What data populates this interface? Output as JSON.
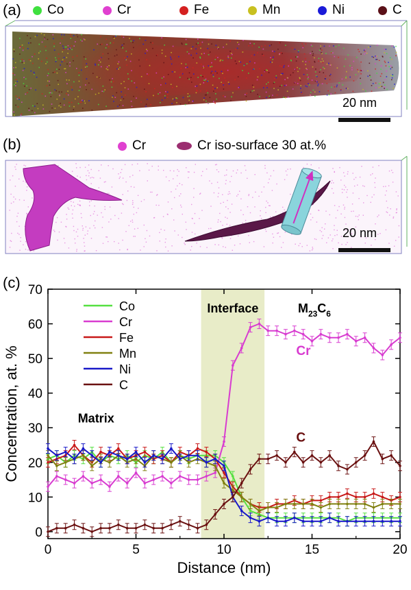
{
  "panel_a": {
    "label": "(a)",
    "legend": [
      {
        "name": "Co",
        "color": "#3fe03f"
      },
      {
        "name": "Cr",
        "color": "#e040d0"
      },
      {
        "name": "Fe",
        "color": "#d42020"
      },
      {
        "name": "Mn",
        "color": "#c8c020"
      },
      {
        "name": "Ni",
        "color": "#1a1ad8"
      },
      {
        "name": "C",
        "color": "#5a1018"
      }
    ],
    "scale_bar": "20 nm"
  },
  "panel_b": {
    "label": "(b)",
    "legend": [
      {
        "name": "Cr",
        "color": "#e040d0",
        "marker": "dot"
      },
      {
        "name": "Cr iso-surface 30 at.%",
        "color": "#9b2e70",
        "marker": "ellipse"
      }
    ],
    "scale_bar": "20 nm"
  },
  "panel_c_label": "(c)",
  "chart_data": {
    "type": "line",
    "xlabel": "Distance (nm)",
    "ylabel": "Concentration, at. %",
    "xlim": [
      0,
      20
    ],
    "ylim": [
      -2,
      70
    ],
    "xticks": [
      0,
      5,
      10,
      15,
      20
    ],
    "yticks": [
      0,
      10,
      20,
      30,
      40,
      50,
      60,
      70
    ],
    "legend_position": "top-left",
    "interface_band": {
      "start": 8.7,
      "end": 12.3,
      "color": "#e8ecc8"
    },
    "annotations": {
      "interface": "Interface",
      "matrix": "Matrix",
      "phase_main": "M",
      "phase_sub1": "23",
      "phase_mid": "C",
      "phase_sub2": "6",
      "cr_label": "Cr",
      "c_label": "C"
    },
    "x": [
      0,
      0.5,
      1,
      1.5,
      2,
      2.5,
      3,
      3.5,
      4,
      4.5,
      5,
      5.5,
      6,
      6.5,
      7,
      7.5,
      8,
      8.5,
      9,
      9.5,
      10,
      10.5,
      11,
      11.5,
      12,
      12.5,
      13,
      13.5,
      14,
      14.5,
      15,
      15.5,
      16,
      16.5,
      17,
      17.5,
      18,
      18.5,
      19,
      19.5,
      20
    ],
    "series": [
      {
        "name": "Co",
        "color": "#55e040",
        "values": [
          21,
          22,
          20,
          22,
          21,
          23,
          20,
          22,
          21,
          22,
          20,
          22,
          21,
          23,
          20,
          22,
          21,
          22,
          22,
          22,
          20,
          16,
          10,
          6,
          5,
          4,
          4,
          4,
          4,
          4,
          4,
          4,
          4,
          4,
          3,
          4,
          4,
          4,
          4,
          4,
          4
        ]
      },
      {
        "name": "Cr",
        "color": "#d83cd0",
        "values": [
          13,
          16,
          15,
          14,
          16,
          14,
          15,
          13,
          16,
          14,
          17,
          14,
          15,
          16,
          14,
          16,
          15,
          15,
          16,
          17,
          26,
          48,
          53,
          59,
          60,
          58,
          58,
          57,
          58,
          57,
          55,
          57,
          56,
          56,
          57,
          55,
          56,
          53,
          51,
          54,
          56
        ]
      },
      {
        "name": "Fe",
        "color": "#c81818",
        "values": [
          20,
          21,
          22,
          25,
          22,
          20,
          23,
          22,
          24,
          21,
          22,
          23,
          21,
          22,
          20,
          23,
          22,
          24,
          23,
          21,
          17,
          13,
          10,
          8,
          7,
          7,
          8,
          8,
          9,
          8,
          9,
          9,
          10,
          10,
          11,
          10,
          10,
          11,
          10,
          9,
          10
        ]
      },
      {
        "name": "Mn",
        "color": "#808010",
        "values": [
          22,
          19,
          20,
          21,
          22,
          19,
          21,
          20,
          22,
          20,
          21,
          19,
          22,
          21,
          20,
          22,
          20,
          21,
          20,
          19,
          14,
          12,
          10,
          8,
          6,
          7,
          7,
          8,
          8,
          8,
          8,
          7,
          8,
          8,
          8,
          8,
          8,
          7,
          8,
          8,
          8
        ]
      },
      {
        "name": "Ni",
        "color": "#1818c8",
        "values": [
          24,
          22,
          23,
          21,
          24,
          22,
          20,
          23,
          22,
          21,
          23,
          20,
          22,
          21,
          24,
          21,
          22,
          22,
          20,
          21,
          19,
          10,
          6,
          4,
          3,
          4,
          3,
          3,
          4,
          3,
          3,
          3,
          4,
          3,
          3,
          3,
          3,
          3,
          3,
          3,
          3
        ]
      },
      {
        "name": "C",
        "color": "#6a1010",
        "values": [
          0,
          1,
          1,
          2,
          1,
          0,
          1,
          1,
          2,
          1,
          1,
          2,
          1,
          1,
          2,
          3,
          2,
          1,
          2,
          5,
          8,
          10,
          14,
          18,
          21,
          21,
          22,
          20,
          23,
          20,
          22,
          20,
          22,
          19,
          18,
          20,
          22,
          26,
          21,
          22,
          19
        ]
      }
    ]
  }
}
